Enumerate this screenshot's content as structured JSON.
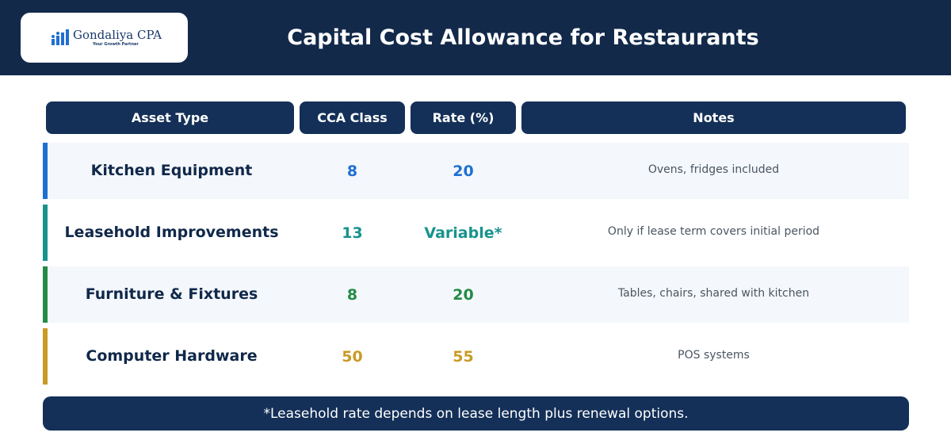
{
  "header": {
    "logo_name": "Gondaliya CPA",
    "logo_tagline": "Your Growth Partner",
    "title": "Capital Cost Allowance for Restaurants"
  },
  "table": {
    "columns": [
      "Asset Type",
      "CCA Class",
      "Rate (%)",
      "Notes"
    ],
    "rows": [
      {
        "asset": "Kitchen Equipment",
        "cca_class": "8",
        "rate": "20",
        "notes": "Ovens, fridges included",
        "color": "#1f6fd1"
      },
      {
        "asset": "Leasehold Improvements",
        "cca_class": "13",
        "rate": "Variable*",
        "notes": "Only if lease term covers initial period",
        "color": "#17938c"
      },
      {
        "asset": "Furniture & Fixtures",
        "cca_class": "8",
        "rate": "20",
        "notes": "Tables, chairs, shared with kitchen",
        "color": "#238b45"
      },
      {
        "asset": "Computer Hardware",
        "cca_class": "50",
        "rate": "55",
        "notes": "POS systems",
        "color": "#c89b24"
      }
    ]
  },
  "footnote": "*Leasehold rate depends on lease length plus renewal options."
}
